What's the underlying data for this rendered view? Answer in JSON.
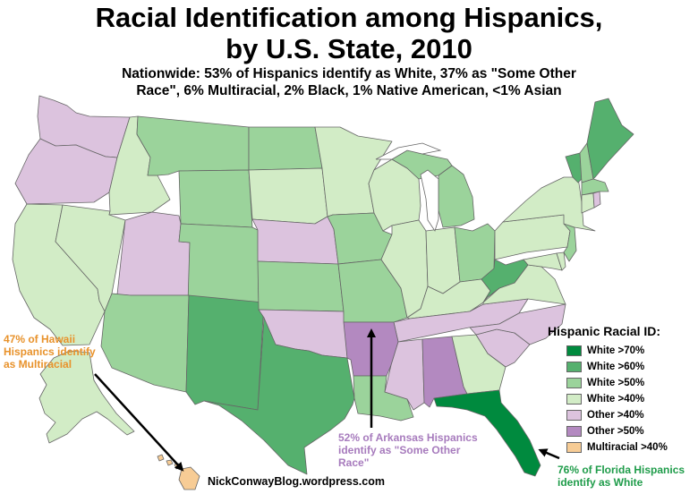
{
  "title_line1": "Racial Identification among Hispanics,",
  "title_line2": "by U.S. State, 2010",
  "subtitle_line1": "Nationwide: 53% of Hispanics identify as White, 37% as \"Some Other",
  "subtitle_line2": "Race\", 6% Multiracial, 2% Black, 1% Native American, <1% Asian",
  "legend": {
    "title": "Hispanic Racial ID:",
    "items": [
      {
        "label": "White >70%",
        "color": "#008a3e"
      },
      {
        "label": "White >60%",
        "color": "#55b06e"
      },
      {
        "label": "White >50%",
        "color": "#9bd39b"
      },
      {
        "label": "White >40%",
        "color": "#d2ecc6"
      },
      {
        "label": "Other >40%",
        "color": "#dcc3de"
      },
      {
        "label": "Other >50%",
        "color": "#b389c0"
      },
      {
        "label": "Multiracial >40%",
        "color": "#f7cc95"
      }
    ]
  },
  "annotations": {
    "hawaii_1": "47% of Hawaii",
    "hawaii_2": "Hispanics identify",
    "hawaii_3": "as Multiracial",
    "arkansas_1": "52% of Arkansas Hispanics",
    "arkansas_2": "identify as \"Some Other",
    "arkansas_3": "Race\"",
    "florida_1": "76% of Florida Hispanics",
    "florida_2": "identify as White"
  },
  "credit": "NickConwayBlog.wordpress.com"
}
